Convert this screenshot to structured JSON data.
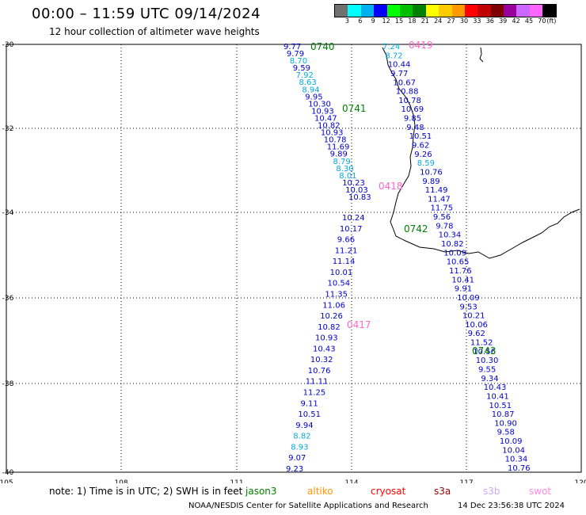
{
  "header": {
    "title": "00:00 – 11:59 UTC 09/14/2024",
    "subtitle": "12 hour collection of altimeter wave heights"
  },
  "legend": {
    "unit": "(ft)",
    "colors": [
      "#707070",
      "#00ffff",
      "#00b0f0",
      "#0000ff",
      "#00ff00",
      "#00c000",
      "#008000",
      "#ffff00",
      "#ffcc00",
      "#ff9900",
      "#ff0000",
      "#c00000",
      "#800000",
      "#990099",
      "#cc66ff",
      "#ff66ff",
      "#000000"
    ],
    "labels": [
      "3",
      "6",
      "9",
      "12",
      "15",
      "18",
      "21",
      "24",
      "27",
      "30",
      "33",
      "36",
      "39",
      "42",
      "45",
      "70"
    ]
  },
  "axes": {
    "lon_ticks": [
      "105",
      "108",
      "111",
      "114",
      "117",
      "120"
    ],
    "lat_ticks": [
      "-30",
      "-32",
      "-34",
      "-36",
      "-38",
      "-40"
    ]
  },
  "passes": [
    {
      "id": "0740",
      "color": "#008000"
    },
    {
      "id": "0741",
      "color": "#008000"
    },
    {
      "id": "0742",
      "color": "#008000"
    },
    {
      "id": "0743",
      "color": "#008000"
    },
    {
      "id": "0419",
      "color": "#ff66cc"
    },
    {
      "id": "0418",
      "color": "#ff66cc"
    },
    {
      "id": "0417",
      "color": "#ff66cc"
    }
  ],
  "tracks": {
    "track_a": [
      {
        "v": "9.77",
        "c": "#0000cc"
      },
      {
        "v": "9.79",
        "c": "#0000cc"
      },
      {
        "v": "8.70",
        "c": "#00aadd"
      },
      {
        "v": "9.59",
        "c": "#0000cc"
      },
      {
        "v": "7.92",
        "c": "#00aadd"
      },
      {
        "v": "8.63",
        "c": "#00aadd"
      },
      {
        "v": "8.94",
        "c": "#00aadd"
      },
      {
        "v": "9.95",
        "c": "#0000cc"
      },
      {
        "v": "10.30",
        "c": "#0000cc"
      },
      {
        "v": "10.93",
        "c": "#0000cc"
      },
      {
        "v": "10.47",
        "c": "#0000cc"
      },
      {
        "v": "10.82",
        "c": "#0000cc"
      },
      {
        "v": "10.93",
        "c": "#0000cc"
      },
      {
        "v": "10.78",
        "c": "#0000cc"
      },
      {
        "v": "11.69",
        "c": "#0000cc"
      },
      {
        "v": "9.89",
        "c": "#0000cc"
      },
      {
        "v": "8.79",
        "c": "#00aadd"
      },
      {
        "v": "8.30",
        "c": "#00aadd"
      },
      {
        "v": "8.01",
        "c": "#00aadd"
      },
      {
        "v": "10.23",
        "c": "#0000cc"
      },
      {
        "v": "10.03",
        "c": "#0000cc"
      },
      {
        "v": "10.83",
        "c": "#0000cc"
      },
      {
        "v": "10.24",
        "c": "#0000cc"
      },
      {
        "v": "10.17",
        "c": "#0000cc"
      },
      {
        "v": "9.66",
        "c": "#0000cc"
      },
      {
        "v": "11.21",
        "c": "#0000cc"
      },
      {
        "v": "11.14",
        "c": "#0000cc"
      },
      {
        "v": "10.01",
        "c": "#0000cc"
      },
      {
        "v": "10.54",
        "c": "#0000cc"
      },
      {
        "v": "11.35",
        "c": "#0000cc"
      },
      {
        "v": "11.06",
        "c": "#0000cc"
      },
      {
        "v": "10.26",
        "c": "#0000cc"
      },
      {
        "v": "10.82",
        "c": "#0000cc"
      },
      {
        "v": "10.93",
        "c": "#0000cc"
      },
      {
        "v": "10.43",
        "c": "#0000cc"
      },
      {
        "v": "10.32",
        "c": "#0000cc"
      },
      {
        "v": "10.76",
        "c": "#0000cc"
      },
      {
        "v": "11.11",
        "c": "#0000cc"
      },
      {
        "v": "11.25",
        "c": "#0000cc"
      },
      {
        "v": "9.11",
        "c": "#0000cc"
      },
      {
        "v": "10.51",
        "c": "#0000cc"
      },
      {
        "v": "9.94",
        "c": "#0000cc"
      },
      {
        "v": "8.82",
        "c": "#00aadd"
      },
      {
        "v": "8.93",
        "c": "#00aadd"
      },
      {
        "v": "9.07",
        "c": "#0000cc"
      },
      {
        "v": "9.23",
        "c": "#0000cc"
      }
    ],
    "track_b": [
      {
        "v": "7.24",
        "c": "#00aadd"
      },
      {
        "v": "8.72",
        "c": "#00aadd"
      },
      {
        "v": "10.44",
        "c": "#0000cc"
      },
      {
        "v": "9.77",
        "c": "#0000cc"
      },
      {
        "v": "10.67",
        "c": "#0000cc"
      },
      {
        "v": "10.88",
        "c": "#0000cc"
      },
      {
        "v": "10.78",
        "c": "#0000cc"
      },
      {
        "v": "10.69",
        "c": "#0000cc"
      },
      {
        "v": "9.85",
        "c": "#0000cc"
      },
      {
        "v": "9.48",
        "c": "#0000cc"
      },
      {
        "v": "10.51",
        "c": "#0000cc"
      },
      {
        "v": "9.62",
        "c": "#0000cc"
      },
      {
        "v": "9.26",
        "c": "#0000cc"
      },
      {
        "v": "8.59",
        "c": "#00aadd"
      },
      {
        "v": "10.76",
        "c": "#0000cc"
      },
      {
        "v": "9.89",
        "c": "#0000cc"
      },
      {
        "v": "11.49",
        "c": "#0000cc"
      },
      {
        "v": "11.47",
        "c": "#0000cc"
      },
      {
        "v": "11.75",
        "c": "#0000cc"
      },
      {
        "v": "9.56",
        "c": "#0000cc"
      },
      {
        "v": "9.78",
        "c": "#0000cc"
      },
      {
        "v": "10.34",
        "c": "#0000cc"
      },
      {
        "v": "10.82",
        "c": "#0000cc"
      },
      {
        "v": "10.09",
        "c": "#0000cc"
      },
      {
        "v": "10.65",
        "c": "#0000cc"
      },
      {
        "v": "11.76",
        "c": "#0000cc"
      },
      {
        "v": "10.41",
        "c": "#0000cc"
      },
      {
        "v": "9.91",
        "c": "#0000cc"
      },
      {
        "v": "10.09",
        "c": "#0000cc"
      },
      {
        "v": "9.53",
        "c": "#0000cc"
      },
      {
        "v": "10.21",
        "c": "#0000cc"
      },
      {
        "v": "10.06",
        "c": "#0000cc"
      },
      {
        "v": "9.62",
        "c": "#0000cc"
      },
      {
        "v": "11.52",
        "c": "#0000cc"
      },
      {
        "v": "10.56",
        "c": "#0000cc"
      },
      {
        "v": "10.30",
        "c": "#0000cc"
      },
      {
        "v": "9.55",
        "c": "#0000cc"
      },
      {
        "v": "9.34",
        "c": "#0000cc"
      },
      {
        "v": "10.43",
        "c": "#0000cc"
      },
      {
        "v": "10.41",
        "c": "#0000cc"
      },
      {
        "v": "10.51",
        "c": "#0000cc"
      },
      {
        "v": "10.87",
        "c": "#0000cc"
      },
      {
        "v": "10.90",
        "c": "#0000cc"
      },
      {
        "v": "9.58",
        "c": "#0000cc"
      },
      {
        "v": "10.09",
        "c": "#0000cc"
      },
      {
        "v": "10.04",
        "c": "#0000cc"
      },
      {
        "v": "10.34",
        "c": "#0000cc"
      },
      {
        "v": "10.76",
        "c": "#0000cc"
      }
    ]
  },
  "footer": {
    "note": "note:  1) Time is in UTC; 2) SWH is in feet",
    "satellites": [
      {
        "name": "jason3",
        "color": "#008000"
      },
      {
        "name": "altiko",
        "color": "#ff9900"
      },
      {
        "name": "cryosat",
        "color": "#ff0000"
      },
      {
        "name": "s3a",
        "color": "#990000"
      },
      {
        "name": "s3b",
        "color": "#ccaaee"
      },
      {
        "name": "swot",
        "color": "#ff88dd"
      }
    ],
    "credit": "NOAA/NESDIS Center for Satellite Applications and Research",
    "timestamp": "14 Dec 23:56:38 UTC 2024"
  }
}
